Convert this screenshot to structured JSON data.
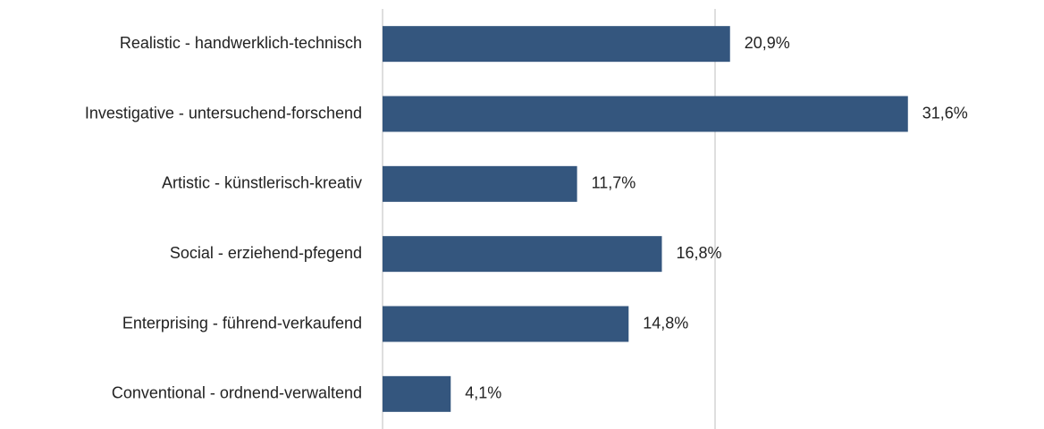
{
  "chart_data": {
    "type": "bar",
    "orientation": "horizontal",
    "categories": [
      "Realistic - handwerklich-technisch",
      "Investigative - untersuchend-forschend",
      "Artistic - künstlerisch-kreativ",
      "Social - erziehend-pfegend",
      "Enterprising - führend-verkaufend",
      "Conventional - ordnend-verwaltend"
    ],
    "values": [
      20.9,
      31.6,
      11.7,
      16.8,
      14.8,
      4.1
    ],
    "value_labels": [
      "20,9%",
      "31,6%",
      "11,7%",
      "16,8%",
      "14,8%",
      "4,1%"
    ],
    "color": "#34567e",
    "xlim": [
      0,
      39
    ],
    "xticks": [
      0,
      20
    ],
    "grid": true
  }
}
